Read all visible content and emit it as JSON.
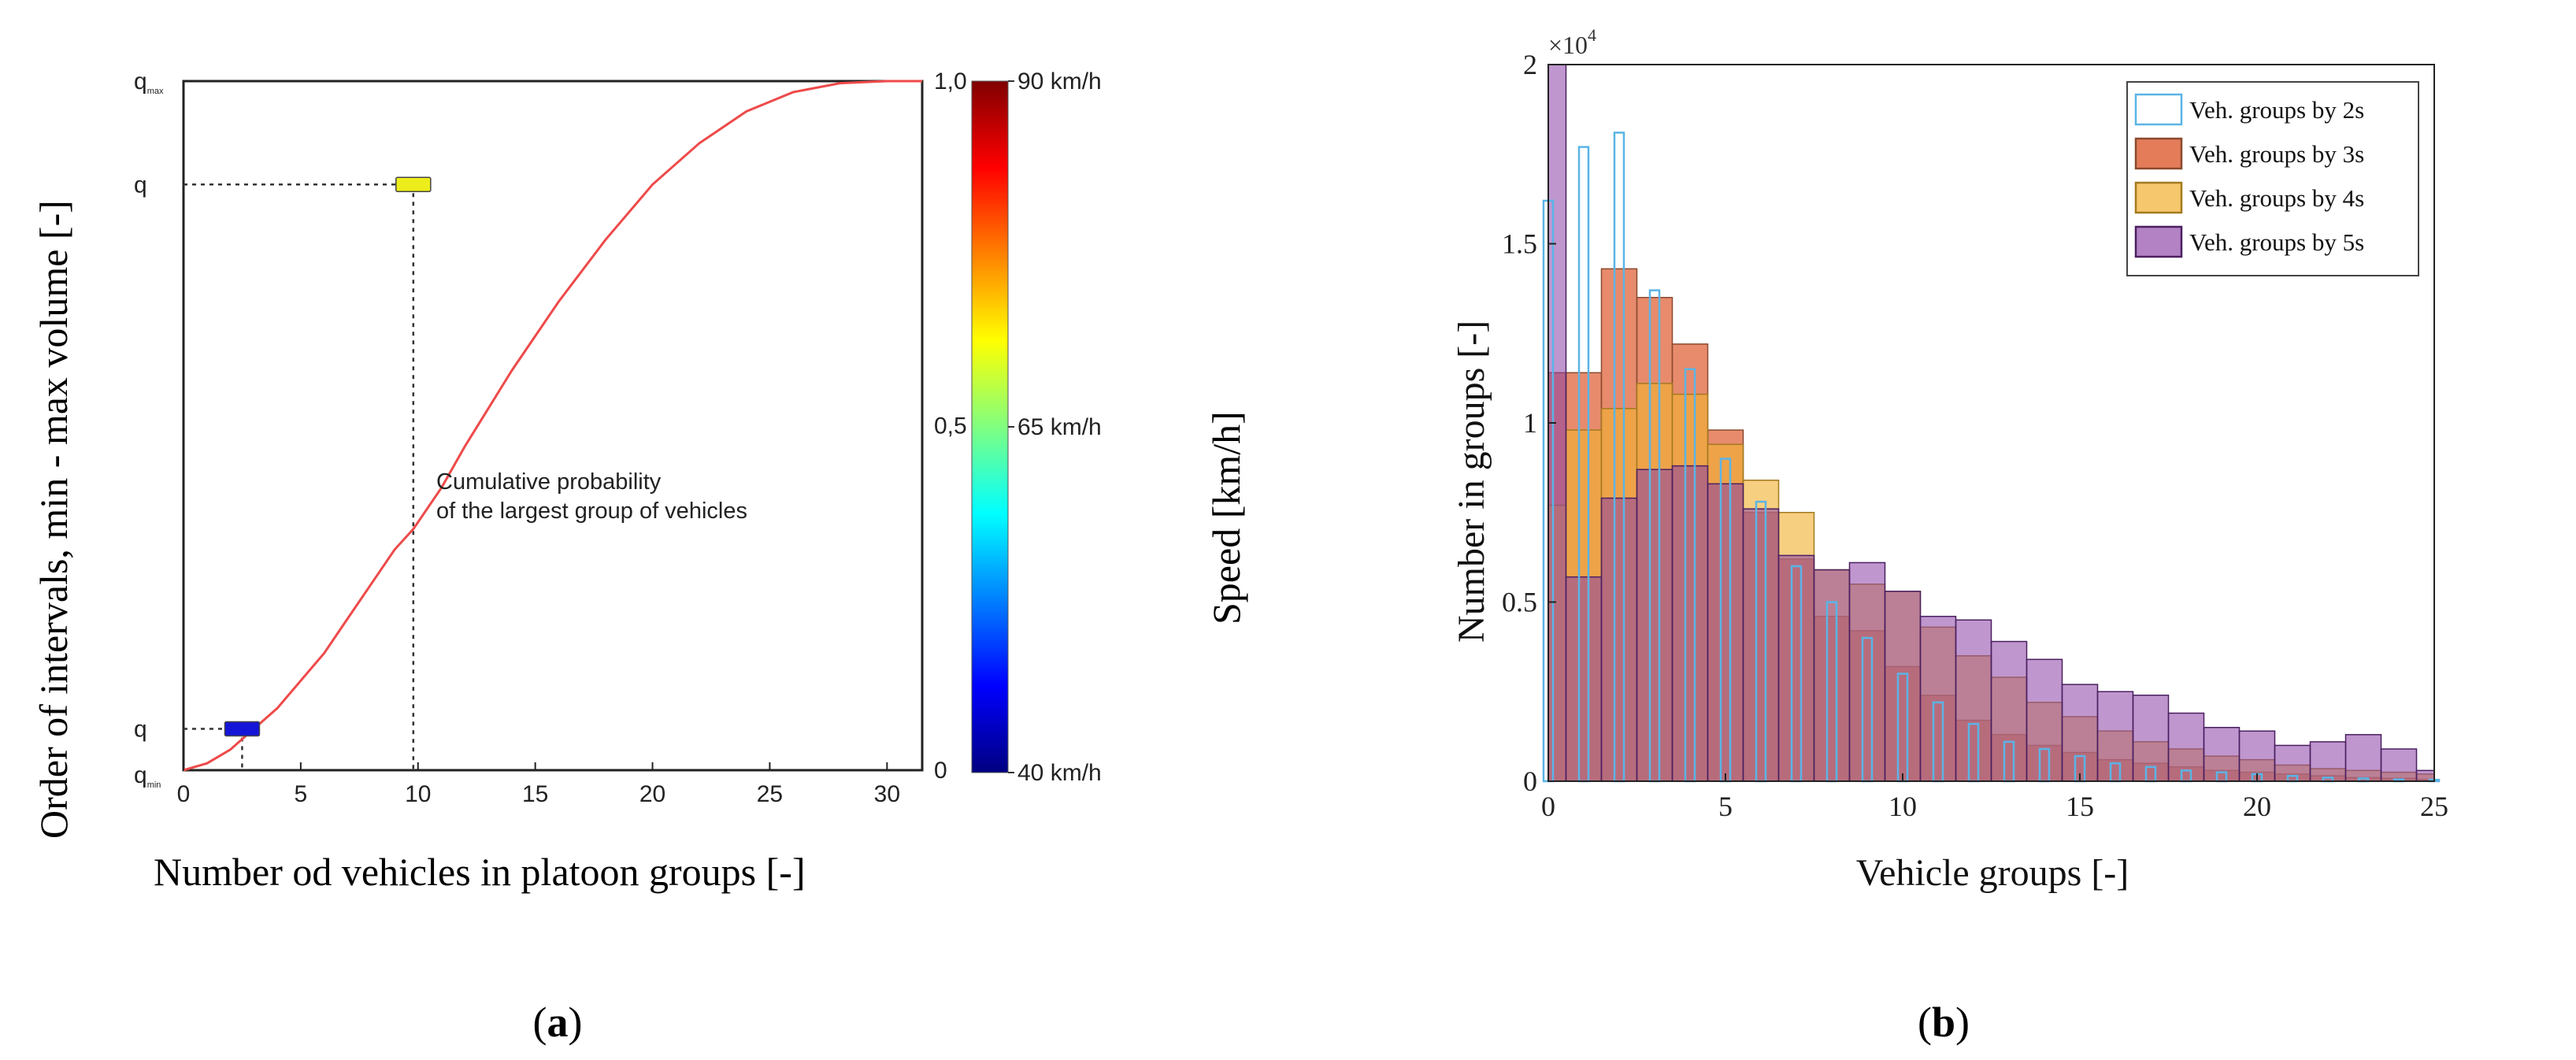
{
  "chart_data": [
    {
      "type": "line",
      "panel_label": "a",
      "xlabel": "Number od vehicles in platoon groups [-]",
      "ylabel": "Order of intervals, min - max volume [-]",
      "xlim": [
        0,
        31.5
      ],
      "ylim": [
        0,
        1
      ],
      "xticks": [
        "0",
        "5",
        "10",
        "15",
        "20",
        "25",
        "30"
      ],
      "xtick_values": [
        0,
        5,
        10,
        15,
        20,
        25,
        30
      ],
      "left_labels": {
        "q_max": "q",
        "q_max_sub": "max",
        "q_mid": "q",
        "q_low": "q",
        "q_min": "q",
        "q_min_sub": "min"
      },
      "right_axis": {
        "ticks": [
          "1,0",
          "0,5",
          "0"
        ],
        "tick_values": [
          1.0,
          0.5,
          0
        ]
      },
      "curve": {
        "name": "Cumulative probability of the largest group of vehicles",
        "color": "#ee4a4a",
        "x": [
          0,
          1,
          2,
          2.5,
          3,
          4,
          5,
          6,
          7,
          8,
          9,
          9.8,
          11,
          12,
          14,
          16,
          18,
          20,
          22,
          24,
          26,
          28,
          30,
          31.5
        ],
        "y": [
          0,
          0.01,
          0.03,
          0.045,
          0.06,
          0.09,
          0.13,
          0.17,
          0.22,
          0.27,
          0.32,
          0.35,
          0.41,
          0.47,
          0.58,
          0.68,
          0.77,
          0.85,
          0.91,
          0.956,
          0.984,
          0.997,
          1.0,
          1.0
        ]
      },
      "annotation_line1": "Cumulative probability",
      "annotation_line2": "of the largest group of vehicles",
      "markers": [
        {
          "name": "high",
          "x": 9.8,
          "y": 0.85,
          "color": "#eded1c"
        },
        {
          "name": "low",
          "x": 2.5,
          "y": 0.06,
          "color": "#1515d8"
        }
      ],
      "colorbar": {
        "label": "Speed [km/h]",
        "ticks": [
          "90 km/h",
          "65 km/h",
          "40 km/h"
        ],
        "tick_values": [
          90,
          65,
          40
        ],
        "range": [
          40,
          90
        ],
        "colors": [
          "#000080",
          "#0000ff",
          "#0080ff",
          "#00ffff",
          "#80ff80",
          "#ffff00",
          "#ff8000",
          "#ff0000",
          "#800000"
        ]
      }
    },
    {
      "type": "bar",
      "panel_label": "b",
      "xlabel": "Vehicle groups [-]",
      "ylabel": "Number in groups [-]",
      "exponent_label": "×10",
      "exponent_power": "4",
      "xlim": [
        0,
        25
      ],
      "ylim": [
        0,
        2
      ],
      "xticks": [
        "0",
        "5",
        "10",
        "15",
        "20",
        "25"
      ],
      "xtick_values": [
        0,
        5,
        10,
        15,
        20,
        25
      ],
      "yticks": [
        "0",
        "0.5",
        "1",
        "1.5",
        "2"
      ],
      "ytick_values": [
        0,
        0.5,
        1,
        1.5,
        2
      ],
      "x": [
        0,
        1,
        2,
        3,
        4,
        5,
        6,
        7,
        8,
        9,
        10,
        11,
        12,
        13,
        14,
        15,
        16,
        17,
        18,
        19,
        20,
        21,
        22,
        23,
        24,
        25
      ],
      "series": [
        {
          "name": "Veh. groups by 2s",
          "fill": "#ffffff",
          "stroke": "#5ab4e6",
          "opacity": 0.0,
          "values": [
            1.62,
            1.77,
            1.81,
            1.37,
            1.15,
            0.9,
            0.78,
            0.6,
            0.5,
            0.4,
            0.3,
            0.22,
            0.16,
            0.11,
            0.09,
            0.07,
            0.05,
            0.04,
            0.03,
            0.025,
            0.02,
            0.015,
            0.01,
            0.008,
            0.005,
            0.004
          ]
        },
        {
          "name": "Veh. groups by 3s",
          "fill": "#e06a42",
          "stroke": "#8a4a30",
          "opacity": 0.78,
          "values": [
            1.14,
            1.14,
            1.43,
            1.35,
            1.22,
            0.98,
            0.75,
            0.62,
            0.46,
            0.42,
            0.32,
            0.24,
            0.17,
            0.13,
            0.1,
            0.08,
            0.06,
            0.05,
            0.04,
            0.03,
            0.025,
            0.02,
            0.015,
            0.01,
            0.008,
            0.005
          ]
        },
        {
          "name": "Veh. groups by 4s",
          "fill": "#f2b233",
          "stroke": "#a47a20",
          "opacity": 0.62,
          "values": [
            0.77,
            0.98,
            1.04,
            1.11,
            1.08,
            0.94,
            0.84,
            0.75,
            0.59,
            0.55,
            0.53,
            0.43,
            0.35,
            0.29,
            0.22,
            0.18,
            0.14,
            0.11,
            0.09,
            0.07,
            0.06,
            0.045,
            0.035,
            0.03,
            0.025,
            0.02
          ]
        },
        {
          "name": "Veh. groups by 5s",
          "fill": "#8b3fa6",
          "stroke": "#4a2060",
          "opacity": 0.55,
          "values": [
            2.0,
            0.57,
            0.79,
            0.87,
            0.88,
            0.83,
            0.76,
            0.63,
            0.59,
            0.61,
            0.53,
            0.46,
            0.45,
            0.39,
            0.34,
            0.27,
            0.25,
            0.24,
            0.19,
            0.15,
            0.14,
            0.1,
            0.11,
            0.13,
            0.09,
            0.03
          ]
        }
      ]
    }
  ]
}
